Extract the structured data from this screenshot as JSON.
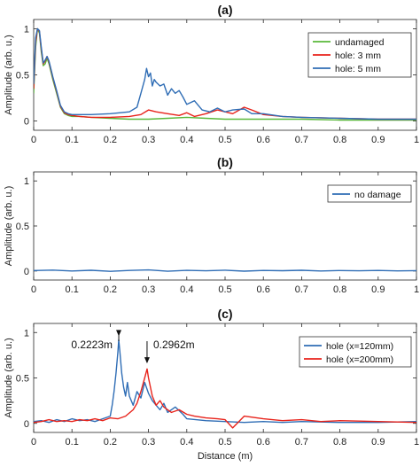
{
  "chart_data": [
    {
      "type": "line",
      "panel_title": "(a)",
      "ylabel": "Amplitude (arb. u.)",
      "xlabel": "",
      "xlim": [
        0,
        1
      ],
      "ylim": [
        -0.1,
        1.1
      ],
      "xticks": [
        "0",
        "0.1",
        "0.2",
        "0.3",
        "0.4",
        "0.5",
        "0.6",
        "0.7",
        "0.8",
        "0.9",
        "1"
      ],
      "yticks": [
        "0",
        "0.5",
        "1"
      ],
      "legend_position": "top-right",
      "series": [
        {
          "name": "undamaged",
          "color": "#59b83a",
          "x": [
            0,
            0.005,
            0.01,
            0.015,
            0.02,
            0.025,
            0.03,
            0.035,
            0.04,
            0.05,
            0.06,
            0.07,
            0.08,
            0.09,
            0.1,
            0.12,
            0.15,
            0.2,
            0.25,
            0.3,
            0.35,
            0.4,
            0.45,
            0.5,
            0.55,
            0.6,
            0.7,
            0.8,
            0.9,
            1.0
          ],
          "y": [
            0.3,
            0.8,
            1.0,
            0.95,
            0.75,
            0.6,
            0.62,
            0.68,
            0.62,
            0.45,
            0.3,
            0.15,
            0.08,
            0.06,
            0.05,
            0.05,
            0.04,
            0.03,
            0.02,
            0.02,
            0.03,
            0.04,
            0.03,
            0.02,
            0.02,
            0.02,
            0.02,
            0.01,
            0.01,
            0.01
          ]
        },
        {
          "name": "hole: 3 mm",
          "color": "#e8231b",
          "x": [
            0,
            0.005,
            0.01,
            0.015,
            0.02,
            0.025,
            0.03,
            0.035,
            0.04,
            0.05,
            0.06,
            0.07,
            0.08,
            0.09,
            0.1,
            0.12,
            0.15,
            0.2,
            0.25,
            0.28,
            0.3,
            0.32,
            0.35,
            0.38,
            0.4,
            0.42,
            0.45,
            0.48,
            0.5,
            0.52,
            0.55,
            0.57,
            0.6,
            0.65,
            0.7,
            0.8,
            0.9,
            1.0
          ],
          "y": [
            0.35,
            0.85,
            1.0,
            0.97,
            0.78,
            0.62,
            0.65,
            0.7,
            0.64,
            0.47,
            0.32,
            0.16,
            0.09,
            0.07,
            0.06,
            0.05,
            0.04,
            0.04,
            0.05,
            0.07,
            0.12,
            0.1,
            0.08,
            0.06,
            0.09,
            0.05,
            0.08,
            0.12,
            0.1,
            0.08,
            0.15,
            0.12,
            0.07,
            0.05,
            0.04,
            0.03,
            0.02,
            0.02
          ]
        },
        {
          "name": "hole: 5 mm",
          "color": "#2f6db5",
          "x": [
            0,
            0.005,
            0.01,
            0.015,
            0.02,
            0.025,
            0.03,
            0.035,
            0.04,
            0.05,
            0.06,
            0.07,
            0.08,
            0.09,
            0.1,
            0.12,
            0.15,
            0.2,
            0.25,
            0.27,
            0.28,
            0.29,
            0.295,
            0.3,
            0.305,
            0.31,
            0.315,
            0.32,
            0.33,
            0.34,
            0.35,
            0.36,
            0.37,
            0.38,
            0.39,
            0.4,
            0.42,
            0.44,
            0.46,
            0.48,
            0.5,
            0.52,
            0.55,
            0.57,
            0.6,
            0.65,
            0.7,
            0.8,
            0.9,
            1.0
          ],
          "y": [
            0.4,
            0.9,
            1.0,
            0.98,
            0.8,
            0.63,
            0.66,
            0.7,
            0.65,
            0.48,
            0.33,
            0.17,
            0.1,
            0.08,
            0.07,
            0.07,
            0.07,
            0.08,
            0.1,
            0.15,
            0.3,
            0.45,
            0.57,
            0.48,
            0.52,
            0.38,
            0.45,
            0.42,
            0.38,
            0.4,
            0.28,
            0.35,
            0.3,
            0.33,
            0.26,
            0.18,
            0.22,
            0.12,
            0.1,
            0.14,
            0.1,
            0.12,
            0.13,
            0.08,
            0.08,
            0.05,
            0.04,
            0.03,
            0.02,
            0.02
          ]
        }
      ]
    },
    {
      "type": "line",
      "panel_title": "(b)",
      "ylabel": "Amplitude (arb. u.)",
      "xlabel": "",
      "xlim": [
        0,
        1
      ],
      "ylim": [
        -0.1,
        1.1
      ],
      "xticks": [
        "0",
        "0.1",
        "0.2",
        "0.3",
        "0.4",
        "0.5",
        "0.6",
        "0.7",
        "0.8",
        "0.9",
        "1"
      ],
      "yticks": [
        "0",
        "0.5",
        "1"
      ],
      "legend_position": "top-right",
      "series": [
        {
          "name": "no damage",
          "color": "#2f6db5",
          "x": [
            0,
            0.05,
            0.1,
            0.15,
            0.2,
            0.25,
            0.3,
            0.35,
            0.4,
            0.45,
            0.5,
            0.55,
            0.6,
            0.65,
            0.7,
            0.75,
            0.8,
            0.85,
            0.9,
            0.95,
            1.0
          ],
          "y": [
            0.005,
            0.01,
            0.0,
            0.008,
            -0.004,
            0.006,
            0.012,
            -0.003,
            0.007,
            0.002,
            0.009,
            -0.002,
            0.006,
            0.003,
            0.008,
            0.0,
            0.005,
            0.002,
            0.006,
            0.001,
            0.004
          ]
        }
      ]
    },
    {
      "type": "line",
      "panel_title": "(c)",
      "ylabel": "Amplitude (arb. u.)",
      "xlabel": "Distance (m)",
      "xlim": [
        0,
        1
      ],
      "ylim": [
        -0.1,
        1.1
      ],
      "xticks": [
        "0",
        "0.1",
        "0.2",
        "0.3",
        "0.4",
        "0.5",
        "0.6",
        "0.7",
        "0.8",
        "0.9",
        "1"
      ],
      "yticks": [
        "0",
        "0.5",
        "1"
      ],
      "legend_position": "top-right",
      "annotations": [
        "0.2223m",
        "0.2962m"
      ],
      "annotation_x": [
        0.2223,
        0.2962
      ],
      "series": [
        {
          "name": "hole (x=120mm)",
          "color": "#2f6db5",
          "x": [
            0,
            0.02,
            0.04,
            0.06,
            0.08,
            0.1,
            0.12,
            0.14,
            0.16,
            0.18,
            0.2,
            0.205,
            0.21,
            0.215,
            0.22,
            0.2223,
            0.225,
            0.23,
            0.235,
            0.24,
            0.245,
            0.25,
            0.26,
            0.27,
            0.28,
            0.29,
            0.3,
            0.31,
            0.32,
            0.33,
            0.34,
            0.35,
            0.37,
            0.39,
            0.4,
            0.45,
            0.5,
            0.55,
            0.6,
            0.65,
            0.7,
            0.8,
            0.9,
            1.0
          ],
          "y": [
            0.02,
            0.03,
            0.01,
            0.04,
            0.02,
            0.05,
            0.03,
            0.04,
            0.02,
            0.05,
            0.08,
            0.2,
            0.35,
            0.55,
            0.78,
            0.92,
            0.8,
            0.55,
            0.4,
            0.3,
            0.45,
            0.3,
            0.2,
            0.35,
            0.28,
            0.45,
            0.33,
            0.25,
            0.2,
            0.15,
            0.22,
            0.12,
            0.18,
            0.1,
            0.05,
            0.03,
            0.02,
            0.01,
            0.02,
            0.01,
            0.02,
            0.01,
            0.01,
            0.02
          ]
        },
        {
          "name": "hole (x=200mm)",
          "color": "#e8231b",
          "x": [
            0,
            0.02,
            0.04,
            0.06,
            0.08,
            0.1,
            0.12,
            0.14,
            0.16,
            0.18,
            0.2,
            0.22,
            0.24,
            0.26,
            0.27,
            0.28,
            0.29,
            0.2962,
            0.3,
            0.31,
            0.32,
            0.33,
            0.34,
            0.35,
            0.36,
            0.38,
            0.4,
            0.42,
            0.45,
            0.48,
            0.5,
            0.52,
            0.55,
            0.6,
            0.65,
            0.7,
            0.75,
            0.8,
            0.9,
            1.0
          ],
          "y": [
            0.01,
            0.02,
            0.04,
            0.02,
            0.03,
            0.02,
            0.04,
            0.03,
            0.05,
            0.03,
            0.06,
            0.05,
            0.08,
            0.15,
            0.22,
            0.35,
            0.5,
            0.6,
            0.5,
            0.3,
            0.2,
            0.25,
            0.18,
            0.15,
            0.12,
            0.15,
            0.1,
            0.08,
            0.06,
            0.05,
            0.04,
            -0.05,
            0.08,
            0.05,
            0.03,
            0.04,
            0.02,
            0.03,
            0.02,
            0.01
          ]
        }
      ]
    }
  ]
}
